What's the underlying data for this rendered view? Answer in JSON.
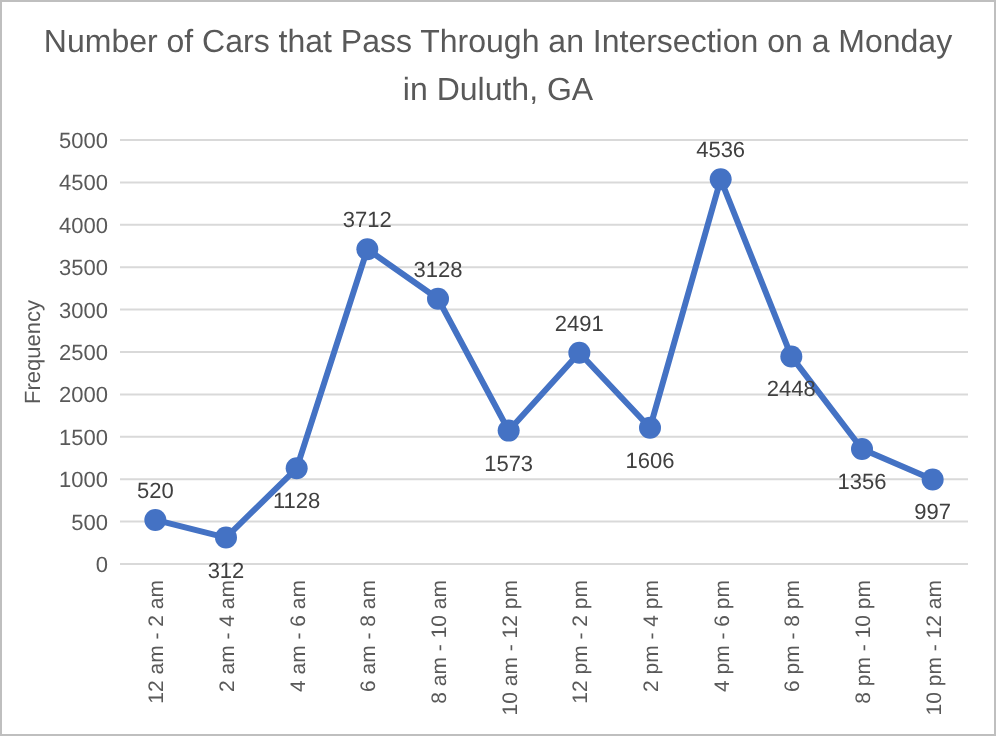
{
  "chart_data": {
    "type": "line",
    "title": "Number of Cars that Pass Through an Intersection on a Monday in Duluth, GA",
    "ylabel": "Frequency",
    "categories": [
      "12 am - 2 am",
      "2 am - 4 am",
      "4 am - 6 am",
      "6 am - 8 am",
      "8 am - 10 am",
      "10 am - 12 pm",
      "12 pm - 2 pm",
      "2 pm - 4 pm",
      "4 pm - 6 pm",
      "6 pm - 8 pm",
      "8 pm - 10 pm",
      "10 pm - 12 am"
    ],
    "series": [
      {
        "color": "#4472c4",
        "values": [
          520,
          312,
          1128,
          3712,
          3128,
          1573,
          2491,
          1606,
          4536,
          2448,
          1356,
          997
        ]
      }
    ],
    "ylim": [
      0,
      5000
    ],
    "yticks": [
      0,
      500,
      1000,
      1500,
      2000,
      2500,
      3000,
      3500,
      4000,
      4500,
      5000
    ],
    "grid": "y",
    "marker": "circle",
    "line_style": "solid",
    "data_labels": true
  }
}
